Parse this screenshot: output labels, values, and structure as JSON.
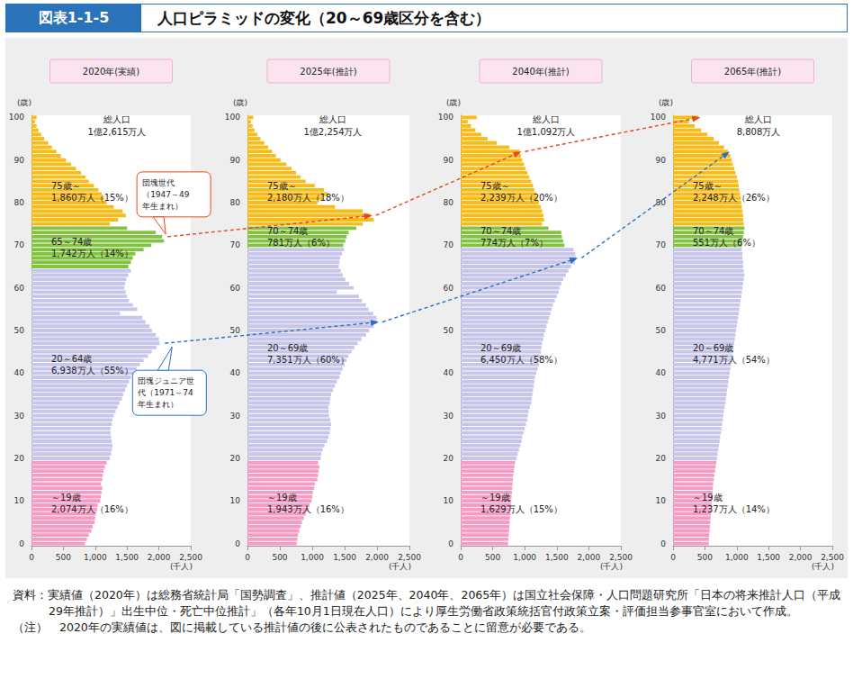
{
  "figure_number": "図表1-1-5",
  "title": "人口ピラミッドの変化（20～69歳区分を含む）",
  "notes": [
    "資料：実績値（2020年）は総務省統計局「国勢調査」、推計値（2025年、2040年、2065年）は国立社会保障・人口問題研究所「日本の将来推計人口（平成29年推計）」出生中位・死亡中位推計」（各年10月1日現在人口）により厚生労働省政策統括官付政策立案・評価担当参事官室において作成。",
    "（注）　2020年の実績値は、図に掲載している推計値の後に公表されたものであることに留意が必要である。"
  ],
  "chart_data": [
    {
      "type": "bar",
      "orientation": "horizontal",
      "title": "2020年(実績)",
      "total": [
        "総人口",
        "1億2,615万人"
      ],
      "xlabel": "(千人)",
      "ylabel": "(歳)",
      "grid": false,
      "xlim": [
        0,
        2500
      ],
      "xticks": [
        0,
        500,
        {
          "value": 1000,
          "label": "1,000"
        },
        {
          "value": 1500,
          "label": "1,500"
        },
        {
          "value": 2000,
          "label": "2,000"
        },
        {
          "value": 2500,
          "label": "2,500"
        }
      ],
      "categories": [
        "0",
        null,
        null,
        null,
        null,
        null,
        null,
        null,
        null,
        null,
        "10",
        null,
        null,
        null,
        null,
        null,
        null,
        null,
        null,
        null,
        "20",
        null,
        null,
        null,
        null,
        null,
        null,
        null,
        null,
        null,
        "30",
        null,
        null,
        null,
        null,
        null,
        null,
        null,
        null,
        null,
        "40",
        null,
        null,
        null,
        null,
        null,
        null,
        null,
        null,
        null,
        "50",
        null,
        null,
        null,
        null,
        null,
        null,
        null,
        null,
        null,
        "60",
        null,
        null,
        null,
        null,
        null,
        null,
        null,
        null,
        null,
        "70",
        null,
        null,
        null,
        null,
        null,
        null,
        null,
        null,
        null,
        "80",
        null,
        null,
        null,
        null,
        null,
        null,
        null,
        null,
        null,
        "90",
        null,
        null,
        null,
        null,
        null,
        null,
        null,
        null,
        null,
        "100"
      ],
      "values": [
        840,
        870,
        900,
        940,
        960,
        990,
        1000,
        1010,
        1030,
        1040,
        1080,
        1090,
        1100,
        1110,
        1090,
        1110,
        1120,
        1130,
        1150,
        1180,
        1230,
        1250,
        1260,
        1270,
        1260,
        1250,
        1240,
        1240,
        1260,
        1270,
        1290,
        1320,
        1350,
        1380,
        1420,
        1440,
        1470,
        1500,
        1530,
        1560,
        1610,
        1650,
        1700,
        1760,
        1830,
        1890,
        1960,
        2010,
        2000,
        1950,
        1890,
        1850,
        1790,
        1740,
        1390,
        1660,
        1590,
        1530,
        1500,
        1480,
        1460,
        1470,
        1490,
        1520,
        1560,
        1520,
        1560,
        1590,
        1630,
        1760,
        1880,
        2080,
        2050,
        1950,
        1500,
        1230,
        1360,
        1480,
        1430,
        1290,
        1180,
        1140,
        1100,
        1050,
        980,
        900,
        850,
        780,
        700,
        620,
        540,
        460,
        390,
        320,
        260,
        200,
        150,
        110,
        80,
        55,
        80
      ],
      "segments": [
        {
          "text": [
            "75歳～",
            "1,860万人（15%）"
          ],
          "from": 75,
          "to": 100,
          "color": "#f8bb17"
        },
        {
          "text": [
            "65～74歳",
            "1,742万人（14%）"
          ],
          "from": 65,
          "to": 74,
          "color": "#82c341"
        },
        {
          "text": [
            "20～64歳",
            "6,938万人（55%）"
          ],
          "from": 20,
          "to": 64,
          "color": "#c8c5ea"
        },
        {
          "text": [
            "～19歳",
            "2,074万人（16%）"
          ],
          "from": 0,
          "to": 19,
          "color": "#f59bc4"
        }
      ]
    },
    {
      "type": "bar",
      "orientation": "horizontal",
      "title": "2025年(推計)",
      "total": [
        "総人口",
        "1億2,254万人"
      ],
      "xlabel": "(千人)",
      "ylabel": "(歳)",
      "grid": false,
      "xlim": [
        0,
        2500
      ],
      "xticks": [
        0,
        500,
        {
          "value": 1000,
          "label": "1,000"
        },
        {
          "value": 1500,
          "label": "1,500"
        },
        {
          "value": 2000,
          "label": "2,000"
        },
        {
          "value": 2500,
          "label": "2,500"
        }
      ],
      "categories": [
        "0",
        null,
        null,
        null,
        null,
        null,
        null,
        null,
        null,
        null,
        "10",
        null,
        null,
        null,
        null,
        null,
        null,
        null,
        null,
        null,
        "20",
        null,
        null,
        null,
        null,
        null,
        null,
        null,
        null,
        null,
        "30",
        null,
        null,
        null,
        null,
        null,
        null,
        null,
        null,
        null,
        "40",
        null,
        null,
        null,
        null,
        null,
        null,
        null,
        null,
        null,
        "50",
        null,
        null,
        null,
        null,
        null,
        null,
        null,
        null,
        null,
        "60",
        null,
        null,
        null,
        null,
        null,
        null,
        null,
        null,
        null,
        "70",
        null,
        null,
        null,
        null,
        null,
        null,
        null,
        null,
        null,
        "80",
        null,
        null,
        null,
        null,
        null,
        null,
        null,
        null,
        null,
        "90",
        null,
        null,
        null,
        null,
        null,
        null,
        null,
        null,
        null,
        "100"
      ],
      "values": [
        760,
        770,
        780,
        800,
        820,
        840,
        870,
        900,
        940,
        960,
        990,
        1000,
        1010,
        1030,
        1040,
        1080,
        1090,
        1100,
        1110,
        1090,
        1130,
        1140,
        1160,
        1190,
        1230,
        1250,
        1270,
        1280,
        1290,
        1280,
        1260,
        1250,
        1250,
        1270,
        1280,
        1290,
        1320,
        1350,
        1380,
        1420,
        1440,
        1470,
        1500,
        1530,
        1560,
        1610,
        1650,
        1700,
        1760,
        1830,
        1880,
        1950,
        2000,
        1990,
        1940,
        1870,
        1830,
        1770,
        1720,
        1380,
        1640,
        1570,
        1510,
        1470,
        1440,
        1410,
        1420,
        1430,
        1460,
        1490,
        1480,
        1510,
        1530,
        1560,
        1680,
        1780,
        1950,
        1900,
        1780,
        1350,
        1080,
        1170,
        1250,
        1180,
        1040,
        900,
        820,
        750,
        680,
        600,
        510,
        440,
        380,
        320,
        260,
        200,
        150,
        110,
        80,
        55,
        90
      ],
      "segments": [
        {
          "text": [
            "75歳～",
            "2,180万人（18%）"
          ],
          "from": 75,
          "to": 100,
          "color": "#f8bb17"
        },
        {
          "text": [
            "70～74歳",
            "781万人（6%）"
          ],
          "from": 70,
          "to": 74,
          "color": "#82c341"
        },
        {
          "text": [
            "20～69歳",
            "7,351万人（60%）"
          ],
          "from": 20,
          "to": 69,
          "color": "#c8c5ea"
        },
        {
          "text": [
            "～19歳",
            "1,943万人（16%）"
          ],
          "from": 0,
          "to": 19,
          "color": "#f59bc4"
        }
      ]
    },
    {
      "type": "bar",
      "orientation": "horizontal",
      "title": "2040年(推計)",
      "total": [
        "総人口",
        "1億1,092万人"
      ],
      "xlabel": "(千人)",
      "ylabel": "(歳)",
      "grid": false,
      "xlim": [
        0,
        2500
      ],
      "xticks": [
        0,
        500,
        {
          "value": 1000,
          "label": "1,000"
        },
        {
          "value": 1500,
          "label": "1,500"
        },
        {
          "value": 2000,
          "label": "2,000"
        },
        {
          "value": 2500,
          "label": "2,500"
        }
      ],
      "categories": [
        "0",
        null,
        null,
        null,
        null,
        null,
        null,
        null,
        null,
        null,
        "10",
        null,
        null,
        null,
        null,
        null,
        null,
        null,
        null,
        null,
        "20",
        null,
        null,
        null,
        null,
        null,
        null,
        null,
        null,
        null,
        "30",
        null,
        null,
        null,
        null,
        null,
        null,
        null,
        null,
        null,
        "40",
        null,
        null,
        null,
        null,
        null,
        null,
        null,
        null,
        null,
        "50",
        null,
        null,
        null,
        null,
        null,
        null,
        null,
        null,
        null,
        "60",
        null,
        null,
        null,
        null,
        null,
        null,
        null,
        null,
        null,
        "70",
        null,
        null,
        null,
        null,
        null,
        null,
        null,
        null,
        null,
        "80",
        null,
        null,
        null,
        null,
        null,
        null,
        null,
        null,
        null,
        "90",
        null,
        null,
        null,
        null,
        null,
        null,
        null,
        null,
        null,
        "100"
      ],
      "values": [
        740,
        745,
        750,
        755,
        760,
        765,
        770,
        775,
        780,
        785,
        790,
        795,
        800,
        805,
        810,
        815,
        820,
        830,
        840,
        850,
        870,
        890,
        910,
        930,
        950,
        960,
        980,
        1000,
        1020,
        1040,
        1050,
        1060,
        1080,
        1100,
        1110,
        1120,
        1130,
        1140,
        1150,
        1160,
        1180,
        1200,
        1220,
        1230,
        1240,
        1250,
        1260,
        1270,
        1290,
        1300,
        1320,
        1340,
        1360,
        1380,
        1400,
        1420,
        1440,
        1470,
        1500,
        1530,
        1540,
        1570,
        1600,
        1640,
        1680,
        1720,
        1780,
        1800,
        1790,
        1760,
        1620,
        1600,
        1580,
        1570,
        1370,
        1270,
        1300,
        1290,
        1270,
        1250,
        1220,
        1200,
        1180,
        1150,
        1130,
        1100,
        1070,
        1040,
        1010,
        990,
        960,
        940,
        920,
        760,
        560,
        420,
        320,
        230,
        160,
        110,
        250
      ],
      "segments": [
        {
          "text": [
            "75歳～",
            "2,239万人（20%）"
          ],
          "from": 75,
          "to": 100,
          "color": "#f8bb17"
        },
        {
          "text": [
            "70～74歳",
            "774万人（7%）"
          ],
          "from": 70,
          "to": 74,
          "color": "#82c341"
        },
        {
          "text": [
            "20～69歳",
            "6,450万人（58%）"
          ],
          "from": 20,
          "to": 69,
          "color": "#c8c5ea"
        },
        {
          "text": [
            "～19歳",
            "1,629万人（15%）"
          ],
          "from": 0,
          "to": 19,
          "color": "#f59bc4"
        }
      ]
    },
    {
      "type": "bar",
      "orientation": "horizontal",
      "title": "2065年(推計)",
      "total": [
        "総人口",
        "8,808万人"
      ],
      "xlabel": "(千人)",
      "ylabel": "(歳)",
      "grid": false,
      "xlim": [
        0,
        2500
      ],
      "xticks": [
        0,
        500,
        {
          "value": 1000,
          "label": "1,000"
        },
        {
          "value": 1500,
          "label": "1,500"
        },
        {
          "value": 2000,
          "label": "2,000"
        },
        {
          "value": 2500,
          "label": "2,500"
        }
      ],
      "categories": [
        "0",
        null,
        null,
        null,
        null,
        null,
        null,
        null,
        null,
        null,
        "10",
        null,
        null,
        null,
        null,
        null,
        null,
        null,
        null,
        null,
        "20",
        null,
        null,
        null,
        null,
        null,
        null,
        null,
        null,
        null,
        "30",
        null,
        null,
        null,
        null,
        null,
        null,
        null,
        null,
        null,
        "40",
        null,
        null,
        null,
        null,
        null,
        null,
        null,
        null,
        null,
        "50",
        null,
        null,
        null,
        null,
        null,
        null,
        null,
        null,
        null,
        "60",
        null,
        null,
        null,
        null,
        null,
        null,
        null,
        null,
        null,
        "70",
        null,
        null,
        null,
        null,
        null,
        null,
        null,
        null,
        null,
        "80",
        null,
        null,
        null,
        null,
        null,
        null,
        null,
        null,
        null,
        "90",
        null,
        null,
        null,
        null,
        null,
        null,
        null,
        null,
        null,
        "100"
      ],
      "values": [
        560,
        565,
        570,
        575,
        580,
        585,
        590,
        595,
        600,
        605,
        610,
        615,
        620,
        625,
        630,
        640,
        650,
        660,
        670,
        680,
        690,
        700,
        710,
        720,
        730,
        740,
        750,
        760,
        770,
        780,
        790,
        800,
        810,
        820,
        830,
        840,
        850,
        860,
        870,
        880,
        890,
        900,
        910,
        920,
        930,
        940,
        950,
        960,
        970,
        980,
        990,
        1000,
        1010,
        1020,
        1030,
        1040,
        1050,
        1060,
        1070,
        1080,
        1090,
        1100,
        1110,
        1120,
        1110,
        1100,
        1100,
        1090,
        1090,
        1080,
        1080,
        1090,
        1100,
        1110,
        1120,
        1110,
        1100,
        1100,
        1090,
        1080,
        1070,
        1060,
        1050,
        1040,
        1030,
        1020,
        1000,
        980,
        960,
        940,
        920,
        900,
        860,
        800,
        720,
        640,
        540,
        440,
        340,
        250,
        400
      ],
      "segments": [
        {
          "text": [
            "75歳～",
            "2,248万人（26%）"
          ],
          "from": 75,
          "to": 100,
          "color": "#f8bb17"
        },
        {
          "text": [
            "70～74歳",
            "551万人（6%）"
          ],
          "from": 70,
          "to": 74,
          "color": "#82c341"
        },
        {
          "text": [
            "20～69歳",
            "4,771万人（54%）"
          ],
          "from": 20,
          "to": 69,
          "color": "#c8c5ea"
        },
        {
          "text": [
            "～19歳",
            "1,237万人（14%）"
          ],
          "from": 0,
          "to": 19,
          "color": "#f59bc4"
        }
      ]
    }
  ],
  "annotations": [
    {
      "lines": [
        "団塊世代",
        "（1947～49",
        "年生まれ）"
      ],
      "color": "#e8461e",
      "ages": [
        72,
        77,
        92,
        100
      ]
    },
    {
      "lines": [
        "団塊ジュニア世",
        "代（1971～74",
        "年生まれ）"
      ],
      "color": "#2a6fc2",
      "ages": [
        47,
        52,
        67,
        92
      ]
    }
  ]
}
